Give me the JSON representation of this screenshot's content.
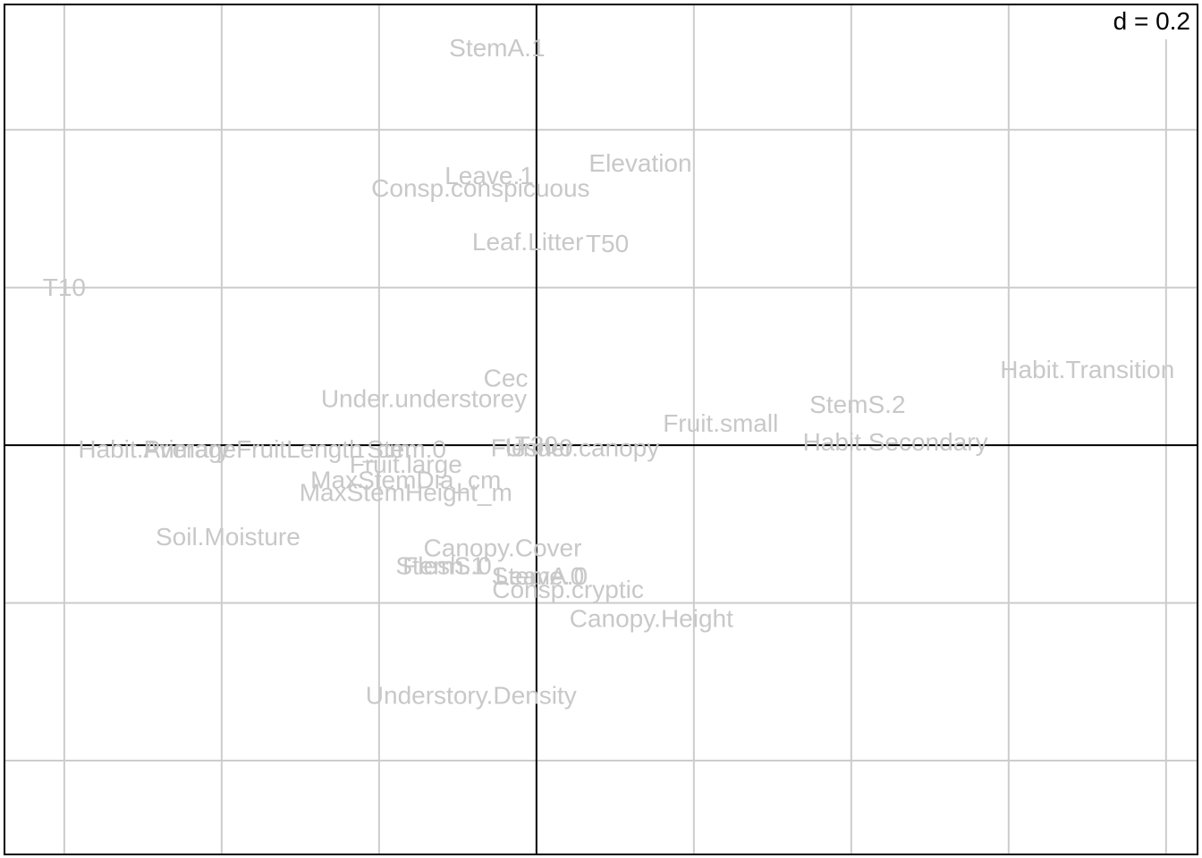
{
  "chart_data": {
    "type": "scatter",
    "title": "",
    "xlabel": "",
    "ylabel": "",
    "scale_label": "d = 0.2",
    "grid_spacing": 0.2,
    "xlim": [
      -0.676,
      0.84
    ],
    "ylim": [
      -0.519,
      0.559
    ],
    "grid": true,
    "origin_axes": true,
    "colors": {
      "labels": "#c8c8c8",
      "grid": "#cccccc",
      "axes": "#000000"
    },
    "points": [
      {
        "label": "StemA.1",
        "x": -0.05,
        "y": 0.504
      },
      {
        "label": "Elevation",
        "x": 0.132,
        "y": 0.358
      },
      {
        "label": "Leave.1",
        "x": -0.06,
        "y": 0.342
      },
      {
        "label": "Consp.conspicuous",
        "x": -0.071,
        "y": 0.326
      },
      {
        "label": "Leaf.Litter",
        "x": -0.011,
        "y": 0.258
      },
      {
        "label": "T50",
        "x": 0.09,
        "y": 0.256
      },
      {
        "label": "T10",
        "x": -0.6,
        "y": 0.2
      },
      {
        "label": "Habit.Transition",
        "x": 0.7,
        "y": 0.096
      },
      {
        "label": "Cec",
        "x": -0.039,
        "y": 0.085
      },
      {
        "label": "Under.understorey",
        "x": -0.143,
        "y": 0.059
      },
      {
        "label": "StemS.2",
        "x": 0.408,
        "y": 0.052
      },
      {
        "label": "Fruit.small",
        "x": 0.234,
        "y": 0.028
      },
      {
        "label": "Habit.Secondary",
        "x": 0.456,
        "y": 0.004
      },
      {
        "label": "Habit.Primary",
        "x": -0.486,
        "y": -0.005
      },
      {
        "label": "AverageFruitLength_cm",
        "x": -0.33,
        "y": -0.005
      },
      {
        "label": "Under.canopy",
        "x": 0.058,
        "y": -0.003
      },
      {
        "label": "Flesh.0",
        "x": -0.006,
        "y": -0.003
      },
      {
        "label": "Stem.0",
        "x": -0.165,
        "y": -0.005
      },
      {
        "label": "T30",
        "x": 0.0,
        "y": 0.0
      },
      {
        "label": "Fruit.large",
        "x": -0.166,
        "y": -0.024
      },
      {
        "label": "MaxStemDia_cm",
        "x": -0.166,
        "y": -0.044
      },
      {
        "label": "MaxStemHeight_m",
        "x": -0.166,
        "y": -0.06
      },
      {
        "label": "Soil.Moisture",
        "x": -0.392,
        "y": -0.116
      },
      {
        "label": "Canopy.Cover",
        "x": -0.043,
        "y": -0.13
      },
      {
        "label": "StemS.0",
        "x": -0.118,
        "y": -0.153
      },
      {
        "label": "Flesh.1",
        "x": -0.118,
        "y": -0.153
      },
      {
        "label": "Leave.0",
        "x": 0.004,
        "y": -0.166
      },
      {
        "label": "StemA.0",
        "x": 0.004,
        "y": -0.166
      },
      {
        "label": "Consp.cryptic",
        "x": 0.04,
        "y": -0.183
      },
      {
        "label": "Canopy.Height",
        "x": 0.146,
        "y": -0.22
      },
      {
        "label": "Understory.Density",
        "x": -0.083,
        "y": -0.317
      }
    ]
  }
}
